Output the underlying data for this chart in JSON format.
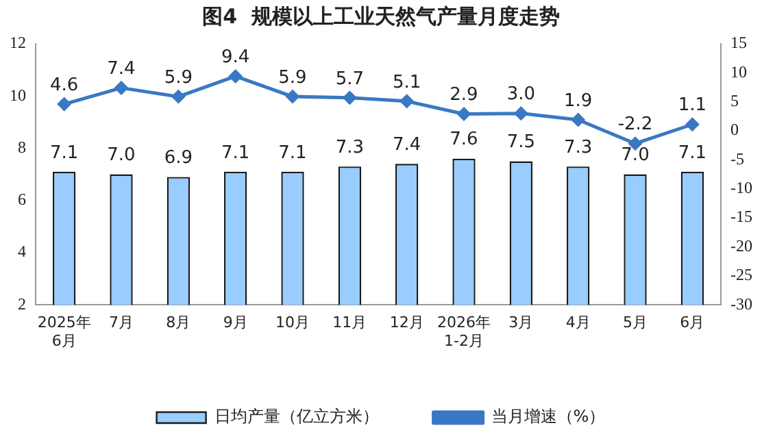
{
  "chart_data": {
    "type": "bar",
    "title": "图4  规模以上工业天然气产量月度走势",
    "categories": [
      "2025年\n6月",
      "7月",
      "8月",
      "9月",
      "10月",
      "11月",
      "12月",
      "2026年\n1-2月",
      "3月",
      "4月",
      "5月",
      "6月"
    ],
    "series": [
      {
        "name": "日均产量（亿立方米）",
        "color": "#99ccff",
        "values": [
          7.1,
          7.0,
          6.9,
          7.1,
          7.1,
          7.3,
          7.4,
          7.6,
          7.5,
          7.3,
          7.0,
          7.1
        ],
        "value_labels": [
          "7.1",
          "7.0",
          "6.9",
          "7.1",
          "7.1",
          "7.3",
          "7.4",
          "7.6",
          "7.5",
          "7.3",
          "7.0",
          "7.1"
        ]
      },
      {
        "name": "当月增速（%）",
        "type": "line",
        "axis": "y2",
        "color": "#3a78c3",
        "values": [
          4.6,
          7.4,
          5.9,
          9.4,
          5.9,
          5.7,
          5.1,
          2.9,
          3.0,
          1.9,
          -2.2,
          1.1
        ],
        "value_labels": [
          "4.6",
          "7.4",
          "5.9",
          "9.4",
          "5.9",
          "5.7",
          "5.1",
          "2.9",
          "3.0",
          "1.9",
          "-2.2",
          "1.1"
        ]
      }
    ],
    "ylim": [
      2,
      12
    ],
    "yticks": [
      2,
      4,
      6,
      8,
      10,
      12
    ],
    "y2lim": [
      -30,
      15
    ],
    "y2ticks": [
      -30,
      -25,
      -20,
      -15,
      -10,
      -5,
      0,
      5,
      10,
      15
    ],
    "grid": false,
    "legend": "bottom",
    "marker": "diamond",
    "line_style": "solid"
  }
}
